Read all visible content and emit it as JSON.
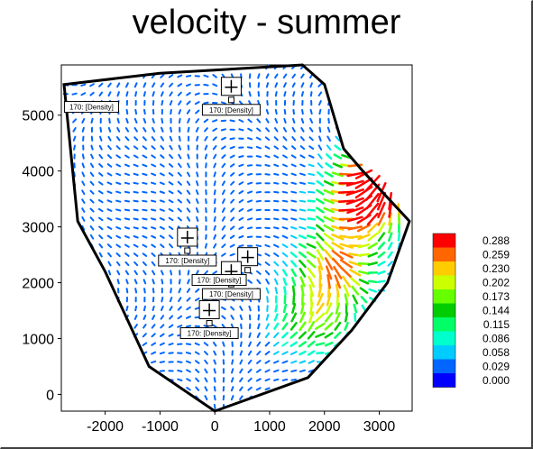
{
  "chart_data": {
    "type": "vector-field",
    "title": "velocity - summer",
    "xlabel": "",
    "ylabel": "",
    "xlim": [
      -2800,
      3600
    ],
    "ylim": [
      -300,
      5900
    ],
    "x_ticks": [
      -2000,
      -1000,
      0,
      1000,
      2000,
      3000
    ],
    "y_ticks": [
      0,
      1000,
      2000,
      3000,
      4000,
      5000
    ],
    "boundary": [
      [
        -2750,
        5550
      ],
      [
        -1000,
        5750
      ],
      [
        1600,
        5900
      ],
      [
        2000,
        5550
      ],
      [
        2350,
        4400
      ],
      [
        2700,
        4000
      ],
      [
        3550,
        3100
      ],
      [
        3150,
        2000
      ],
      [
        2500,
        1150
      ],
      [
        1700,
        300
      ],
      [
        0,
        -300
      ],
      [
        -1200,
        500
      ],
      [
        -2000,
        2200
      ],
      [
        -2500,
        3100
      ]
    ],
    "hotspots": [
      {
        "x": 2700,
        "y": 3500,
        "strength": 0.27
      },
      {
        "x": 3300,
        "y": 4050,
        "strength": 0.29
      },
      {
        "x": 2250,
        "y": 2300,
        "strength": 0.2
      },
      {
        "x": 1800,
        "y": 1400,
        "strength": 0.14
      }
    ],
    "legend": {
      "title": "",
      "placement": "right",
      "values": [
        "0.288",
        "0.259",
        "0.230",
        "0.202",
        "0.173",
        "0.144",
        "0.115",
        "0.086",
        "0.058",
        "0.029",
        "0.000"
      ],
      "colors": [
        "#ff0000",
        "#ff6600",
        "#ffcc00",
        "#ccff00",
        "#66ff00",
        "#00cc00",
        "#00ff66",
        "#00ffcc",
        "#00ccff",
        "#0066ff",
        "#0000ff"
      ]
    },
    "probes": [
      {
        "x": 300,
        "y": 5500,
        "label": "170: [Density]"
      },
      {
        "x": -500,
        "y": 2800,
        "label": "170: [Density]"
      },
      {
        "x": 600,
        "y": 2450,
        "label": ""
      },
      {
        "x": 300,
        "y": 2200,
        "label": "170: [Density]"
      },
      {
        "x": -100,
        "y": 1500,
        "label": "170: [Density]"
      }
    ],
    "probe_extra_labels": [
      "170: [Density]",
      "170: [Density]"
    ],
    "grid": false
  }
}
